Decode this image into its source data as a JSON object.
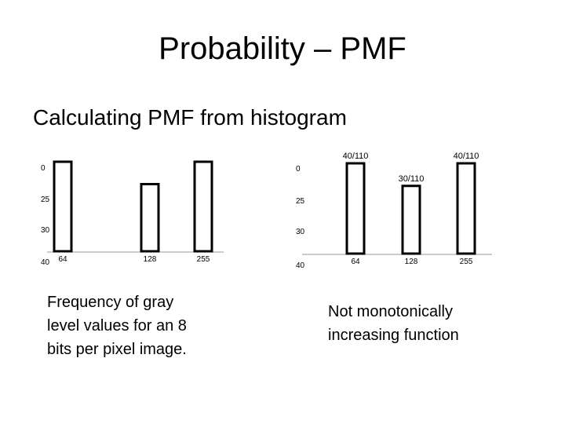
{
  "slide": {
    "title": "Probability – PMF",
    "subtitle": "Calculating PMF from histogram",
    "caption_left": "Frequency of gray\nlevel values for an 8\nbits per pixel image.",
    "caption_right": "Not monotonically\nincreasing function"
  },
  "chart_data": [
    {
      "type": "bar",
      "categories": [
        "64",
        "128",
        "255"
      ],
      "values": [
        40,
        30,
        40
      ],
      "y_ticks": [
        "0",
        "25",
        "30",
        "40"
      ],
      "bar_labels": [],
      "grid": false,
      "colors": {
        "bar_fill": "#ffffff",
        "bar_stroke": "#000000"
      }
    },
    {
      "type": "bar",
      "categories": [
        "64",
        "128",
        "255"
      ],
      "values": [
        0.3636,
        0.2727,
        0.3636
      ],
      "y_ticks": [
        "0",
        "25",
        "30",
        "40"
      ],
      "bar_labels": [
        "40/110",
        "30/110",
        "40/110"
      ],
      "grid": false,
      "colors": {
        "bar_fill": "#ffffff",
        "bar_stroke": "#000000"
      }
    }
  ]
}
